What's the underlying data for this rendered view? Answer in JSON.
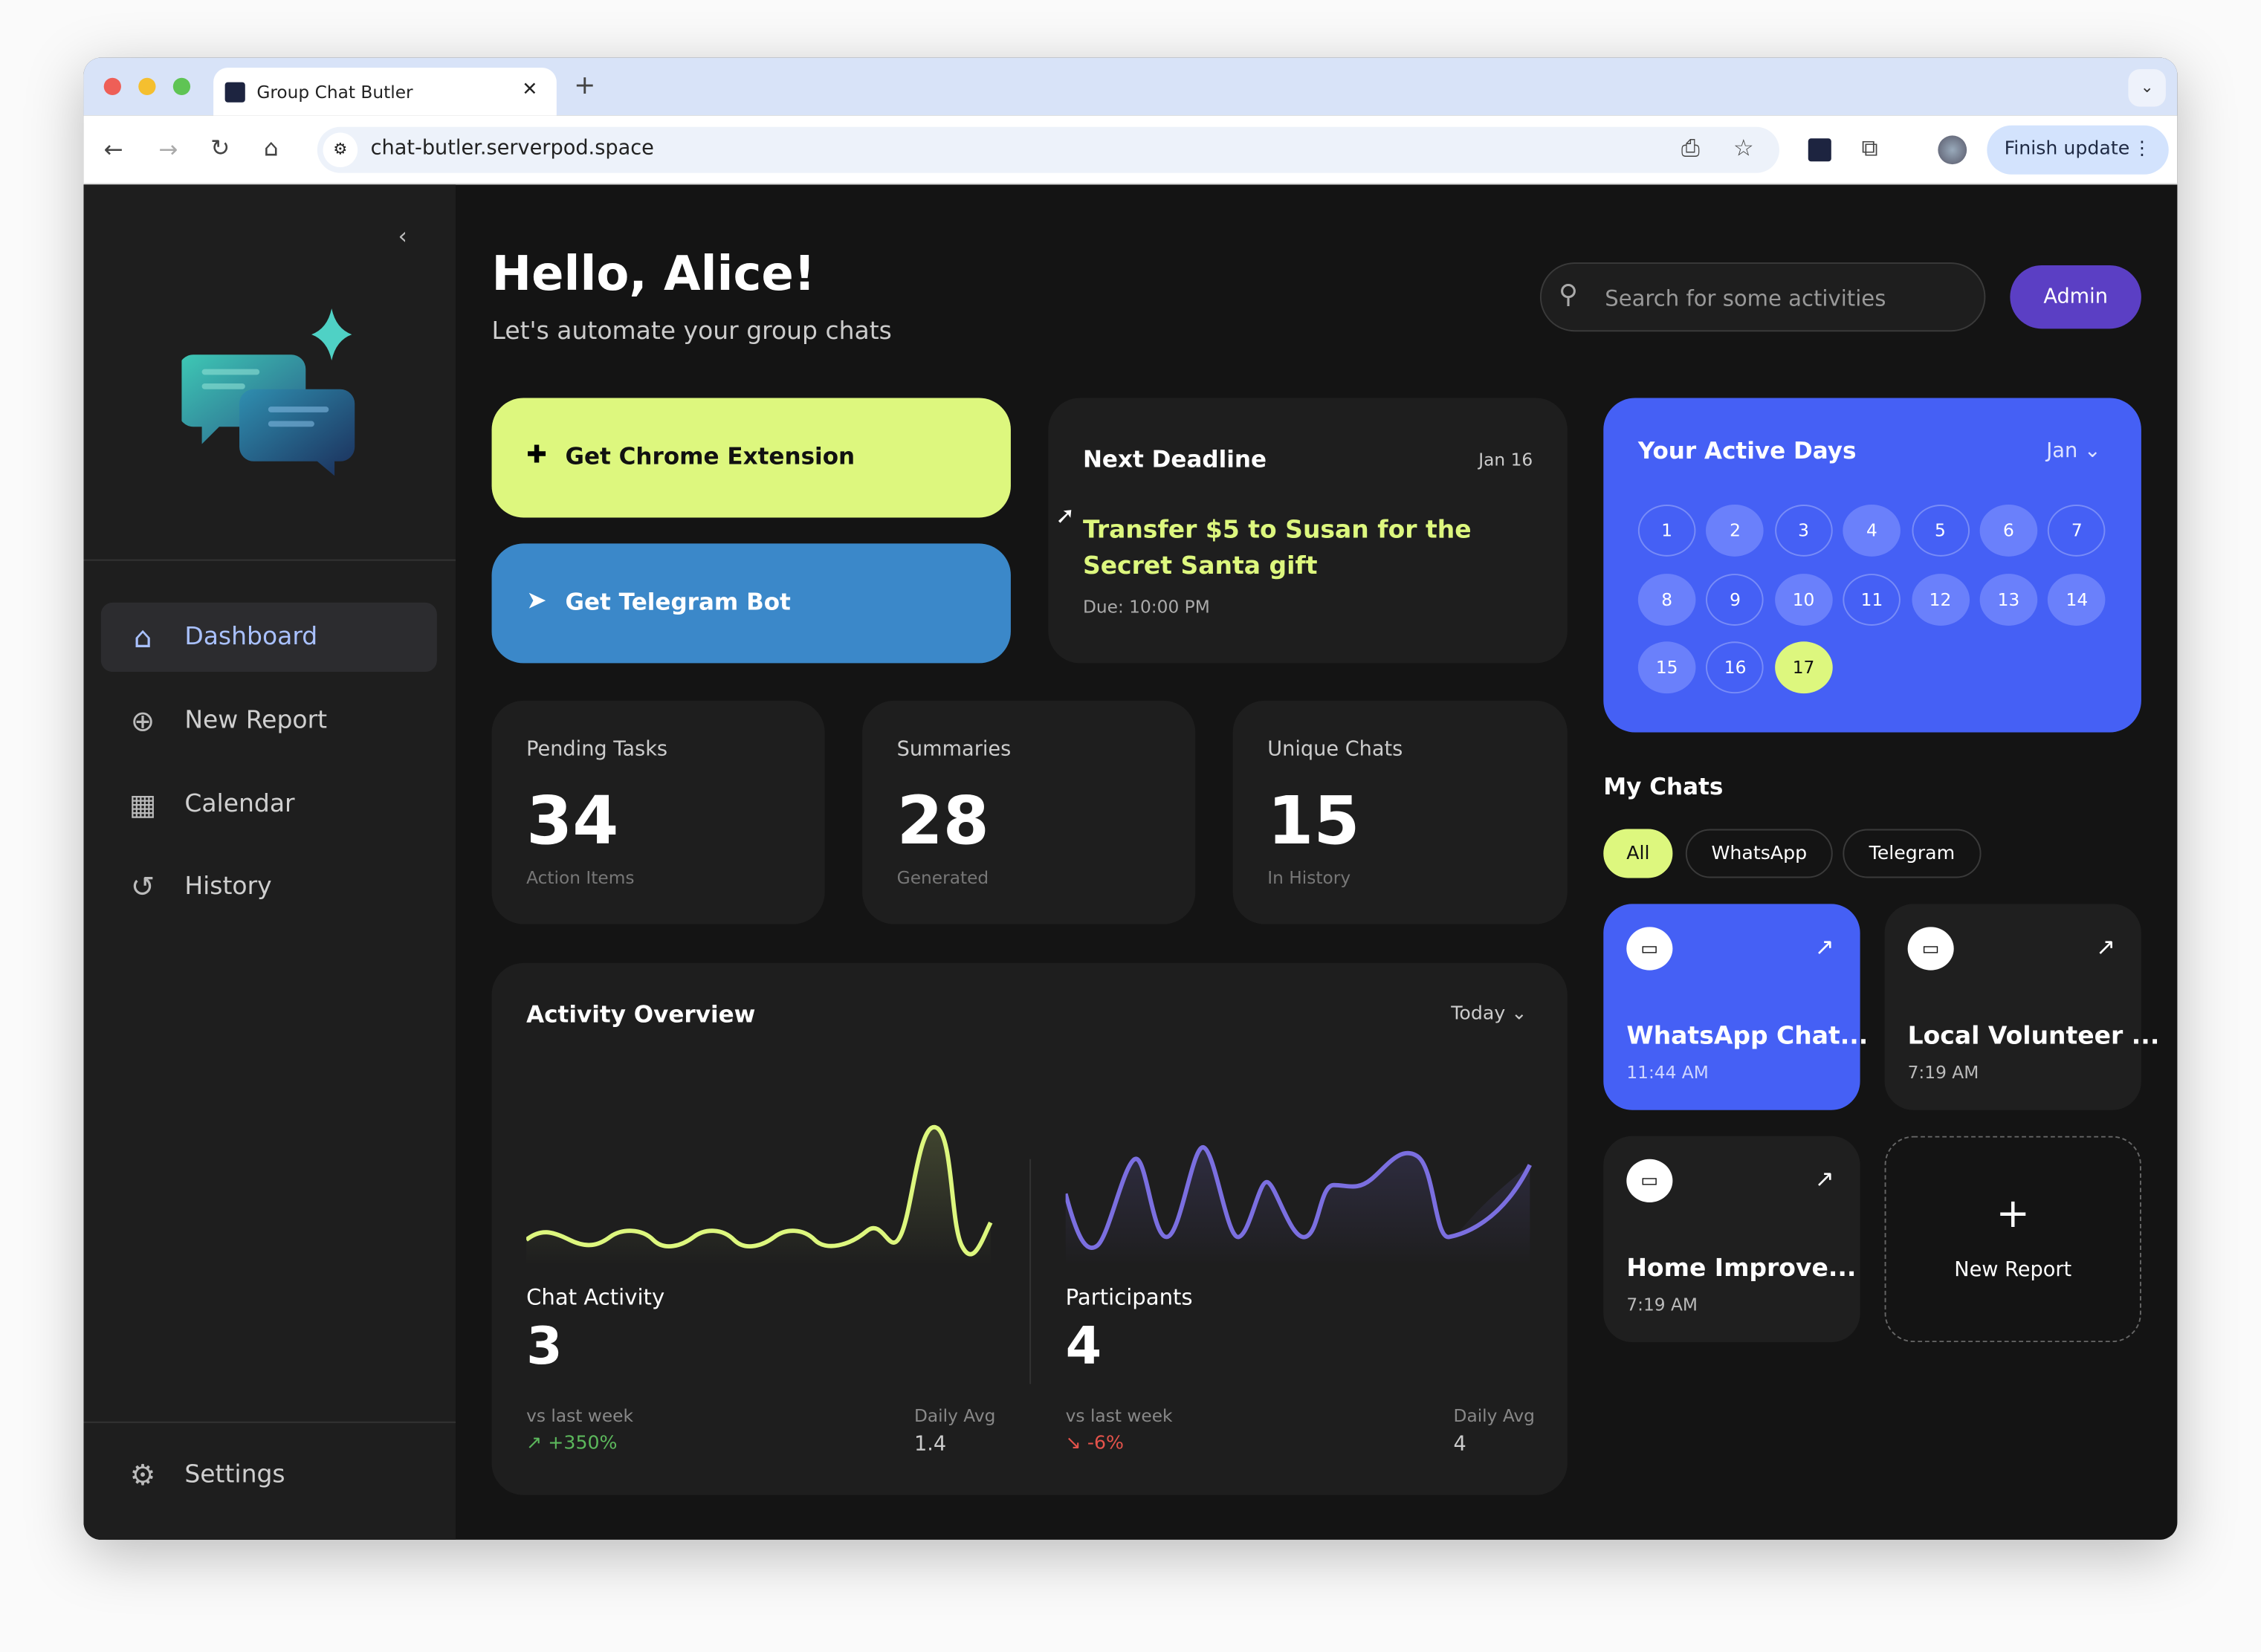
{
  "browser": {
    "tab_title": "Group Chat Butler",
    "url": "chat-butler.serverpod.space",
    "finish_update": "Finish update"
  },
  "sidebar": {
    "items": [
      {
        "label": "Dashboard",
        "icon": "home-icon"
      },
      {
        "label": "New Report",
        "icon": "plus-circle-icon"
      },
      {
        "label": "Calendar",
        "icon": "calendar-icon"
      },
      {
        "label": "History",
        "icon": "history-icon"
      }
    ],
    "settings": "Settings"
  },
  "header": {
    "greeting": "Hello, Alice!",
    "subtitle": "Let's automate your group chats",
    "search_placeholder": "Search for some activities",
    "admin": "Admin"
  },
  "actions": {
    "chrome": "Get Chrome Extension",
    "telegram": "Get Telegram Bot"
  },
  "deadline": {
    "title": "Next Deadline",
    "date": "Jan 16",
    "task": "Transfer $5 to Susan for the Secret Santa gift",
    "due": "Due: 10:00 PM"
  },
  "stats": [
    {
      "label": "Pending Tasks",
      "value": "34",
      "sub": "Action Items"
    },
    {
      "label": "Summaries",
      "value": "28",
      "sub": "Generated"
    },
    {
      "label": "Unique Chats",
      "value": "15",
      "sub": "In History"
    }
  ],
  "activity": {
    "title": "Activity Overview",
    "period": "Today",
    "chat": {
      "label": "Chat Activity",
      "value": "3",
      "vs_label": "vs last week",
      "change": "+350%",
      "avg_label": "Daily Avg",
      "avg": "1.4"
    },
    "participants": {
      "label": "Participants",
      "value": "4",
      "vs_label": "vs last week",
      "change": "-6%",
      "avg_label": "Daily Avg",
      "avg": "4"
    }
  },
  "active_days": {
    "title": "Your Active Days",
    "month": "Jan",
    "days": [
      {
        "d": "1",
        "s": "o"
      },
      {
        "d": "2",
        "s": "f"
      },
      {
        "d": "3",
        "s": "o"
      },
      {
        "d": "4",
        "s": "f"
      },
      {
        "d": "5",
        "s": "o"
      },
      {
        "d": "6",
        "s": "f"
      },
      {
        "d": "7",
        "s": "o"
      },
      {
        "d": "8",
        "s": "f"
      },
      {
        "d": "9",
        "s": "o"
      },
      {
        "d": "10",
        "s": "f"
      },
      {
        "d": "11",
        "s": "o"
      },
      {
        "d": "12",
        "s": "f"
      },
      {
        "d": "13",
        "s": "f"
      },
      {
        "d": "14",
        "s": "f"
      },
      {
        "d": "15",
        "s": "f"
      },
      {
        "d": "16",
        "s": "o"
      },
      {
        "d": "17",
        "s": "h"
      }
    ]
  },
  "my_chats": {
    "title": "My Chats",
    "filters": [
      "All",
      "WhatsApp",
      "Telegram"
    ],
    "chats": [
      {
        "name": "WhatsApp Chat...",
        "time": "11:44 AM"
      },
      {
        "name": "Local Volunteer ...",
        "time": "7:19 AM"
      },
      {
        "name": "Home Improve...",
        "time": "7:19 AM"
      }
    ],
    "new_report": "New Report"
  },
  "colors": {
    "accent_lime": "#ddf77e",
    "accent_blue": "#4560f5",
    "telegram": "#3b88c9",
    "admin": "#5b3fc4",
    "positive": "#5cb85c",
    "negative": "#e5534b"
  }
}
